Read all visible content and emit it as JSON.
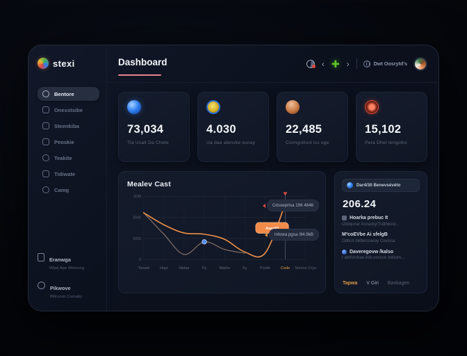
{
  "app": {
    "logo_text": "stexi"
  },
  "sidebar": {
    "items": [
      {
        "label": "Bentore"
      },
      {
        "label": "Onesstsibe"
      },
      {
        "label": "Steenkiba"
      },
      {
        "label": "Peoskie"
      },
      {
        "label": "Teakite"
      },
      {
        "label": "Tidiwate"
      },
      {
        "label": "Camg"
      }
    ],
    "footer_items": [
      {
        "label": "Eranwga",
        "sub": "Wlad Ape Winnong"
      },
      {
        "label": "Pikwove",
        "sub": "Blitrozsh Camaby"
      }
    ]
  },
  "header": {
    "title": "Dashboard",
    "nav_label": "Dwt Oosrytd's",
    "accent_color": "#e8838d",
    "plus_glyph": "✚",
    "chevron_left": "‹",
    "chevron_right": "›"
  },
  "stats": [
    {
      "value": "73,034",
      "label": "Tia Usait Da Chete",
      "icon_color": "#2f7ff0"
    },
    {
      "value": "4.030",
      "label": "Ua dae alenvke sunay",
      "icon_color": "#e8c832"
    },
    {
      "value": "22,485",
      "label": "Covngrétsnl ics oge",
      "icon_color": "#c77843"
    },
    {
      "value": "15,102",
      "label": "Pera Dhet terigotks",
      "icon_color": "#e05039"
    }
  ],
  "chart_data": {
    "type": "line",
    "title": "Mealev Cast",
    "categories": [
      "Tanwd",
      "Hayt",
      "Idelae",
      "Fy",
      "Marlie",
      "6y",
      "Povbt",
      "Cede",
      "Setzno Crys"
    ],
    "highlight_index": 7,
    "highlight_color": "#d9a13f",
    "y_tick_labels_top_to_bottom": [
      "1199",
      "3048",
      "2015",
      "0"
    ],
    "series": [
      {
        "name": "secondary",
        "color": "#7d6c63",
        "values": [
          0.74,
          0.4,
          0.08,
          0.28,
          0.16,
          0.1,
          null,
          null,
          null
        ]
      },
      {
        "name": "primary",
        "color": "#ef8f47",
        "values": [
          0.74,
          0.55,
          0.42,
          0.4,
          0.32,
          0.12,
          0.1,
          0.88,
          null
        ]
      }
    ],
    "markers": [
      {
        "xi": 3.0,
        "v": 0.28,
        "color": "#4f8df0"
      },
      {
        "xi": 6.75,
        "v": 0.8,
        "color": "#4f8df0"
      }
    ],
    "tooltip": {
      "label": "Asa×tD",
      "xi": 6.35,
      "v": 0.5,
      "color": "#f28a4a"
    },
    "annotations": [
      {
        "label": "Cdsoeprtsa 196 4646"
      },
      {
        "label": "Infowa pgsa /94.9kB"
      }
    ],
    "grid": true,
    "legend": "none"
  },
  "panel": {
    "badge_label": "Dar4/30 Benevsévéto",
    "value": "206.24",
    "items": [
      {
        "title": "Hoarka prebuc It",
        "sub": "Ostiqunar Asnacky/Tsdthèsst..."
      },
      {
        "title": "M²coEVbe Ai sfelgB",
        "sub": "Odbclr dettersswray Covissa"
      },
      {
        "title": "Daveregovw /kalso",
        "sub": "I attrforsbae ésb-ovssve óslóom..."
      }
    ],
    "tags": [
      {
        "label": "Tapwa"
      },
      {
        "label": "V Giri"
      },
      {
        "label": "Bankagen"
      }
    ]
  }
}
